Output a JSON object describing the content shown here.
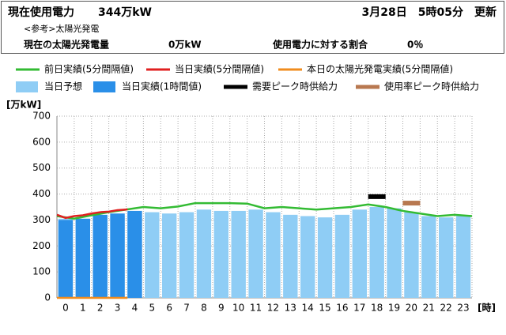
{
  "header": {
    "usage_label": "現在使用電力",
    "usage_value": "344万kW",
    "updated": "3月28日　5時05分　更新",
    "reference": "<参考>太陽光発電",
    "solar_label": "現在の太陽光発電量",
    "solar_value": "0万kW",
    "ratio_label": "使用電力に対する割合",
    "ratio_value": "0％"
  },
  "chart_data": {
    "type": "bar",
    "y_label": "[万kW]",
    "x_label": "[時]",
    "categories": [
      "0",
      "1",
      "2",
      "3",
      "4",
      "5",
      "6",
      "7",
      "8",
      "9",
      "10",
      "11",
      "12",
      "13",
      "14",
      "15",
      "16",
      "17",
      "18",
      "19",
      "20",
      "21",
      "22",
      "23"
    ],
    "xlim": [
      0,
      24
    ],
    "ylim": [
      0,
      700
    ],
    "yticks": [
      0,
      100,
      200,
      300,
      400,
      500,
      600,
      700
    ],
    "grid": true,
    "series": [
      {
        "name": "前日実績(5分間隔値)",
        "type": "line",
        "color": "#33bb33",
        "x": [
          0,
          1,
          2,
          3,
          4,
          5,
          6,
          7,
          8,
          9,
          10,
          11,
          12,
          13,
          14,
          15,
          16,
          17,
          18,
          19,
          20,
          21,
          22,
          23,
          24
        ],
        "values": [
          315,
          305,
          318,
          330,
          340,
          350,
          345,
          352,
          365,
          365,
          365,
          363,
          345,
          350,
          345,
          340,
          345,
          350,
          360,
          350,
          335,
          325,
          315,
          320,
          315
        ]
      },
      {
        "name": "当日実績(5分間隔値)",
        "type": "line",
        "color": "#e02020",
        "x": [
          0,
          0.5,
          1,
          1.5,
          2,
          2.5,
          3,
          3.5,
          4,
          4.08
        ],
        "values": [
          320,
          308,
          315,
          318,
          325,
          330,
          332,
          338,
          340,
          342
        ]
      },
      {
        "name": "本日の太陽光発電実績(5分間隔値)",
        "type": "line",
        "color": "#f08c1e",
        "x": [
          0,
          4.08
        ],
        "values": [
          0,
          0
        ]
      },
      {
        "name": "当日予想",
        "type": "bar",
        "color": "#8fcdf5",
        "values": [
          305,
          300,
          305,
          315,
          325,
          330,
          325,
          330,
          340,
          335,
          335,
          340,
          330,
          320,
          315,
          310,
          320,
          340,
          350,
          345,
          330,
          315,
          310,
          315
        ]
      },
      {
        "name": "当日実績(1時間値)",
        "type": "bar",
        "color": "#2a8fe8",
        "values": [
          300,
          305,
          320,
          325,
          335,
          null,
          null,
          null,
          null,
          null,
          null,
          null,
          null,
          null,
          null,
          null,
          null,
          null,
          null,
          null,
          null,
          null,
          null,
          null
        ]
      },
      {
        "name": "需要ピーク時供給力",
        "type": "marker",
        "color": "#000000",
        "x": [
          18
        ],
        "values": [
          390
        ]
      },
      {
        "name": "使用率ピーク時供給力",
        "type": "marker",
        "color": "#b87850",
        "x": [
          20
        ],
        "values": [
          365
        ]
      }
    ]
  }
}
